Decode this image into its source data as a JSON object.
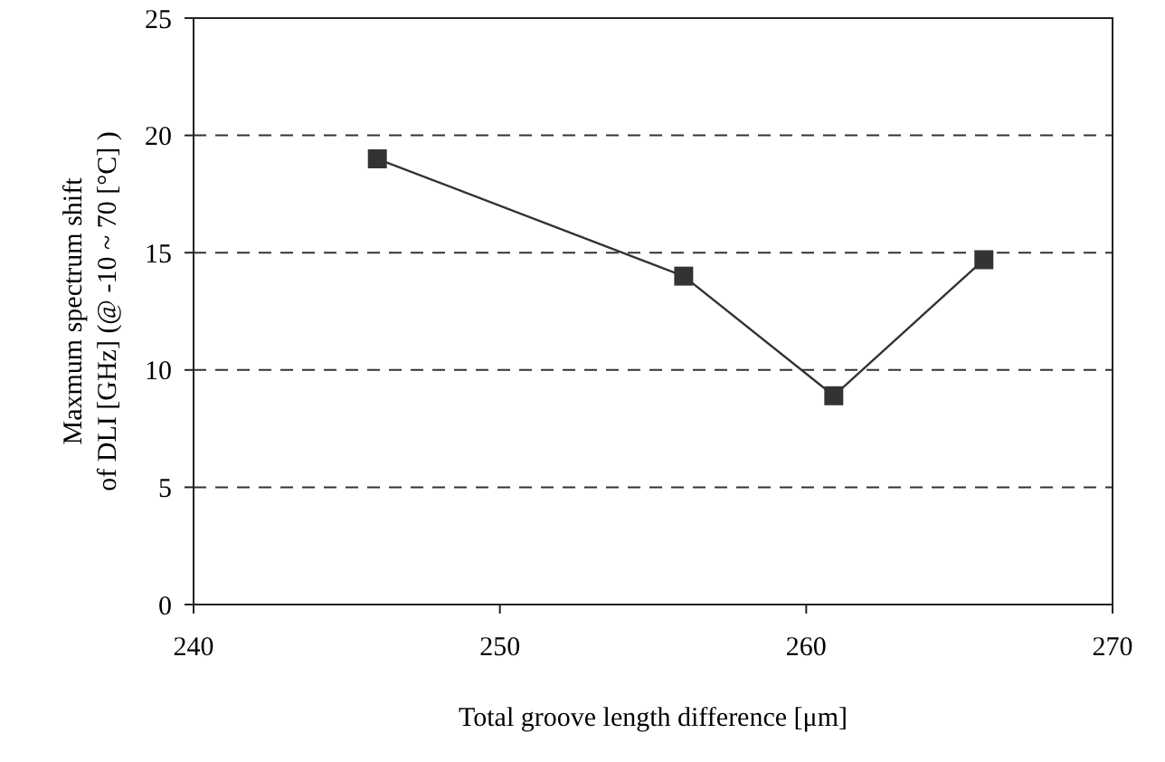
{
  "chart_data": {
    "type": "line",
    "xlabel": "Total groove length difference [μm]",
    "ylabel": "Maxmum spectrum shift\nof DLI [GHz] (@ -10 ~ 70 [°C] )",
    "x": [
      246,
      256,
      260.9,
      265.8
    ],
    "series": [
      {
        "color": "#333333",
        "values": [
          19.0,
          14.0,
          8.9,
          14.7
        ]
      }
    ],
    "xlim": [
      240,
      270
    ],
    "xticks": [
      240,
      250,
      260,
      270
    ],
    "ylim": [
      0,
      25
    ],
    "yticks": [
      0,
      5,
      10,
      15,
      20,
      25
    ],
    "grid": "y",
    "marker": "square",
    "line_style": "solid"
  }
}
